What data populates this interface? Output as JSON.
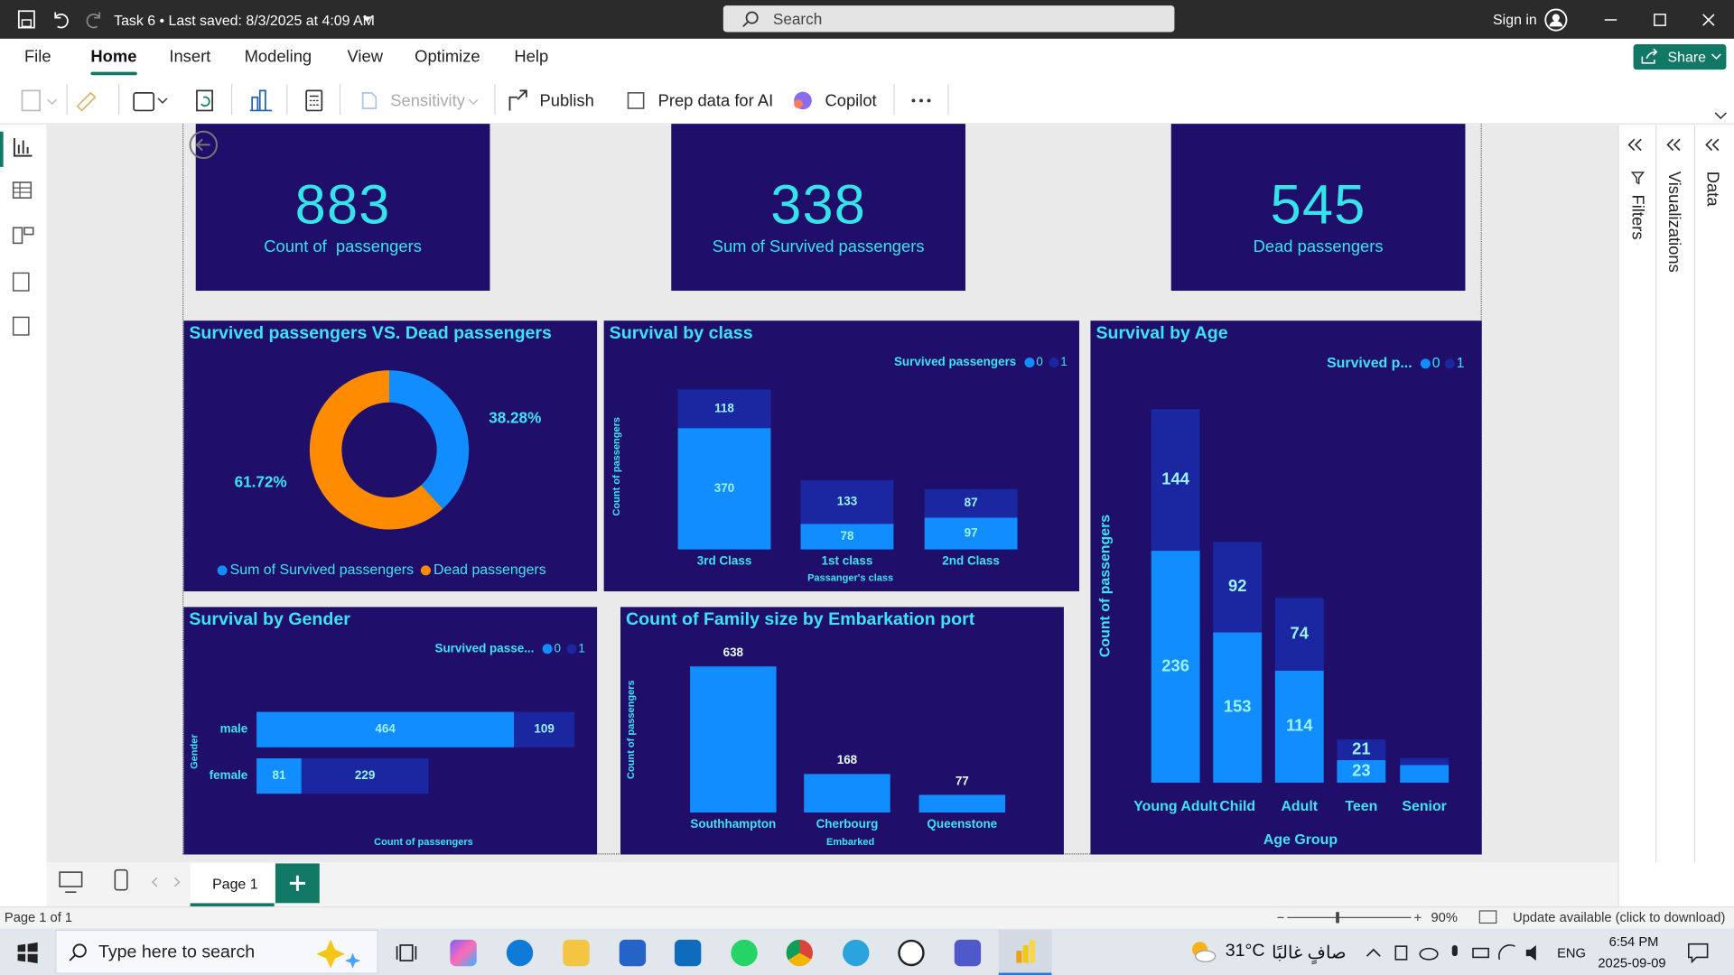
{
  "window": {
    "title": "Task 6 • Last saved: 8/3/2025 at 4:09 AM",
    "search": "Search",
    "sign_in": "Sign in"
  },
  "menu": {
    "items": [
      "File",
      "Home",
      "Insert",
      "Modeling",
      "View",
      "Optimize",
      "Help"
    ],
    "active": "Home",
    "share": "Share"
  },
  "ribbon": {
    "sensitivity": "Sensitivity",
    "publish": "Publish",
    "prep": "Prep data for AI",
    "copilot": "Copilot"
  },
  "panes": {
    "filters": "Filters",
    "visualizations": "Visualizations",
    "data": "Data"
  },
  "cards": [
    {
      "value": 883,
      "label": "Count of  passengers"
    },
    {
      "value": 338,
      "label": "Sum of Survived passengers"
    },
    {
      "value": 545,
      "label": "Dead passengers"
    }
  ],
  "chart_data": [
    {
      "type": "donut",
      "title": "Survived passengers VS. Dead passengers",
      "categories": [
        "Sum of Survived passengers",
        "Dead passengers"
      ],
      "values": [
        38.28,
        61.72
      ],
      "value_labels": [
        "38.28%",
        "61.72%"
      ],
      "colors": [
        "#118dff",
        "#ff8c00"
      ]
    },
    {
      "type": "bar",
      "title": "Survival by class",
      "x_label": "Passanger's class",
      "y_label": "Count of passengers",
      "legend_title": "Survived passengers",
      "categories": [
        "3rd Class",
        "1st class",
        "2nd Class"
      ],
      "stacked": true,
      "series": [
        {
          "name": "0",
          "color": "#118dff",
          "values": [
            370,
            78,
            97
          ]
        },
        {
          "name": "1",
          "color": "#1a27a0",
          "values": [
            118,
            133,
            87
          ]
        }
      ],
      "ylim": [
        0,
        600
      ]
    },
    {
      "type": "bar",
      "title": "Survival by Age",
      "x_label": "Age Group",
      "y_label": "Count of passengers",
      "legend_title": "Survived p...",
      "categories": [
        "Young Adult",
        "Child",
        "Adult",
        "Teen",
        "Senior"
      ],
      "stacked": true,
      "series": [
        {
          "name": "0",
          "color": "#118dff",
          "values": [
            236,
            153,
            114,
            23,
            18
          ]
        },
        {
          "name": "1",
          "color": "#1a27a0",
          "values": [
            144,
            92,
            74,
            21,
            7
          ]
        }
      ],
      "ylim": [
        0,
        450
      ]
    },
    {
      "type": "bar",
      "horizontal": true,
      "title": "Survival by Gender",
      "x_label": "Count of passengers",
      "y_label": "Gender",
      "legend_title": "Survived passe...",
      "categories": [
        "male",
        "female"
      ],
      "stacked": true,
      "series": [
        {
          "name": "0",
          "color": "#118dff",
          "values": [
            464,
            81
          ]
        },
        {
          "name": "1",
          "color": "#1a27a0",
          "values": [
            109,
            229
          ]
        }
      ],
      "xlim": [
        0,
        600
      ]
    },
    {
      "type": "bar",
      "title": "Count of Family size by Embarkation port",
      "x_label": "Embarked",
      "y_label": "Count of passengers",
      "categories": [
        "Southhampton",
        "Cherbourg",
        "Queenstone"
      ],
      "values": [
        638,
        168,
        77
      ],
      "color": "#118dff",
      "ylim": [
        0,
        700
      ]
    }
  ],
  "pages": {
    "tabs": [
      "Page 1"
    ],
    "status": "Page 1 of 1",
    "zoom": "90%",
    "update": "Update available (click to download)"
  },
  "taskbar": {
    "search": "Type here to search",
    "temperature": "31°C",
    "weather": "صافٍ غالبًا",
    "language": "ENG",
    "time": "6:54 PM",
    "date": "2025-09-09"
  }
}
